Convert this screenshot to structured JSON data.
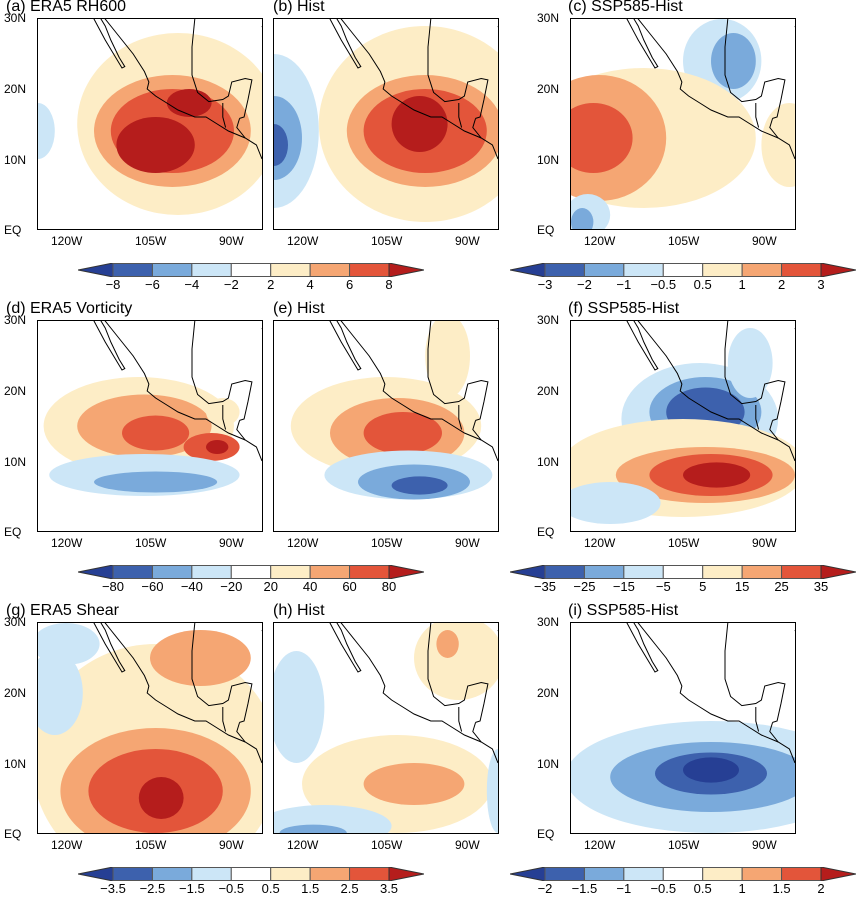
{
  "colors": [
    "#263f94",
    "#3d61ad",
    "#7aaadb",
    "#cce6f7",
    "#ffffff",
    "#fdedc6",
    "#f5a673",
    "#e3553a",
    "#b51d1c"
  ],
  "axes": {
    "lat_ticks": [
      "30N",
      "20N",
      "10N",
      "EQ"
    ],
    "lon_ticks": [
      "120W",
      "105W",
      "90W"
    ]
  },
  "panels": [
    {
      "title": "(a) ERA5 RH600"
    },
    {
      "title": "(b) Hist"
    },
    {
      "title": "(c) SSP585-Hist"
    },
    {
      "title": "(d) ERA5 Vorticity"
    },
    {
      "title": "(e) Hist"
    },
    {
      "title": "(f) SSP585-Hist"
    },
    {
      "title": "(g) ERA5 Shear"
    },
    {
      "title": "(h) Hist"
    },
    {
      "title": "(i) SSP585-Hist"
    }
  ],
  "colorbars": [
    {
      "labels": [
        "−8",
        "−6",
        "−4",
        "−2",
        "2",
        "4",
        "6",
        "8"
      ]
    },
    {
      "labels": [
        "−3",
        "−2",
        "−1",
        "−0.5",
        "0.5",
        "1",
        "2",
        "3"
      ]
    },
    {
      "labels": [
        "−80",
        "−60",
        "−40",
        "−20",
        "20",
        "40",
        "60",
        "80"
      ]
    },
    {
      "labels": [
        "−35",
        "−25",
        "−15",
        "−5",
        "5",
        "15",
        "25",
        "35"
      ]
    },
    {
      "labels": [
        "−3.5",
        "−2.5",
        "−1.5",
        "−0.5",
        "0.5",
        "1.5",
        "2.5",
        "3.5"
      ]
    },
    {
      "labels": [
        "−2",
        "−1.5",
        "−1",
        "−0.5",
        "0.5",
        "1",
        "1.5",
        "2"
      ]
    }
  ]
}
